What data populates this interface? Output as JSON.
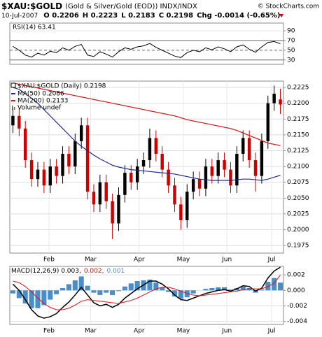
{
  "header": {
    "symbol": "$XAU:$GOLD",
    "description": "(Gold & Silver/Gold (EOD)) INDX/INDX",
    "copyright": "© StockCharts.com",
    "date": "10-Jul-2007",
    "open": "O 0.2206",
    "high": "H 0.2223",
    "low": "L 0.2183",
    "close": "C 0.2198",
    "change": "Chg -0.0014 (-0.65%)"
  },
  "chart_data": [
    {
      "type": "line",
      "title": "RSI(14) 63.41",
      "xlim": [
        -0.5,
        43.5
      ],
      "ylim": [
        21,
        106
      ],
      "yticks": [
        90,
        70,
        50,
        30
      ],
      "series": [
        {
          "name": "RSI(14)",
          "color": "#000000",
          "values": [
            58,
            50,
            40,
            36,
            44,
            40,
            48,
            45,
            55,
            50,
            58,
            62,
            40,
            37,
            47,
            42,
            36,
            47,
            55,
            52,
            57,
            59,
            64,
            56,
            50,
            44,
            38,
            35,
            45,
            50,
            47,
            55,
            51,
            57,
            53,
            47,
            57,
            61,
            52,
            46,
            57,
            66,
            68,
            63.41
          ]
        }
      ]
    },
    {
      "type": "candlestick",
      "title": "$XAU:$GOLD (Daily) 0.2198",
      "volume_label": "Volume undef",
      "up_color": "#000000",
      "down_color": "#cc0000",
      "grid": true,
      "xlim": [
        -0.5,
        43.5
      ],
      "xticks": [
        {
          "value": 5.8,
          "label": "Feb"
        },
        {
          "value": 12.5,
          "label": "Mar"
        },
        {
          "value": 20.3,
          "label": "Apr"
        },
        {
          "value": 27.4,
          "label": "May"
        },
        {
          "value": 34.4,
          "label": "Jun"
        },
        {
          "value": 41.6,
          "label": "Jul"
        }
      ],
      "ylim": [
        0.1963,
        0.2235
      ],
      "yticks": [
        0.1975,
        {
          "value": 0.2,
          "label": "0.2000"
        },
        0.2025,
        {
          "value": 0.205,
          "label": "0.2050"
        },
        0.2075,
        {
          "value": 0.21,
          "label": "0.2100"
        },
        0.2125,
        {
          "value": 0.215,
          "label": "0.2150"
        },
        0.2175,
        {
          "value": 0.22,
          "label": "0.2200"
        },
        0.2225
      ],
      "open": [
        0.2165,
        0.218,
        0.216,
        0.211,
        0.208,
        0.2095,
        0.207,
        0.21,
        0.2085,
        0.212,
        0.21,
        0.214,
        0.2165,
        0.206,
        0.204,
        0.2075,
        0.2045,
        0.201,
        0.2055,
        0.209,
        0.2075,
        0.21,
        0.211,
        0.2145,
        0.212,
        0.2095,
        0.207,
        0.204,
        0.2015,
        0.206,
        0.208,
        0.2065,
        0.21,
        0.2085,
        0.211,
        0.2095,
        0.207,
        0.212,
        0.2145,
        0.211,
        0.2085,
        0.214,
        0.22,
        0.2206
      ],
      "high": [
        0.2192,
        0.2192,
        0.2172,
        0.2122,
        0.2107,
        0.2107,
        0.2112,
        0.2112,
        0.2132,
        0.2132,
        0.2152,
        0.2177,
        0.2177,
        0.2072,
        0.2087,
        0.2087,
        0.2057,
        0.2067,
        0.2102,
        0.2102,
        0.2112,
        0.2122,
        0.216,
        0.2157,
        0.2132,
        0.2107,
        0.2082,
        0.2052,
        0.2072,
        0.2092,
        0.2092,
        0.2112,
        0.2112,
        0.2122,
        0.2122,
        0.2107,
        0.2132,
        0.2157,
        0.2157,
        0.2122,
        0.2152,
        0.2212,
        0.2228,
        0.2223
      ],
      "low": [
        0.2153,
        0.2148,
        0.2098,
        0.2068,
        0.2068,
        0.2058,
        0.2058,
        0.2073,
        0.2073,
        0.2088,
        0.2088,
        0.2128,
        0.2048,
        0.2028,
        0.2028,
        0.2033,
        0.1985,
        0.1998,
        0.2043,
        0.2063,
        0.2063,
        0.2088,
        0.2098,
        0.2108,
        0.2083,
        0.2058,
        0.2028,
        0.2,
        0.2003,
        0.2048,
        0.2053,
        0.2053,
        0.2073,
        0.2073,
        0.2083,
        0.2058,
        0.2058,
        0.2108,
        0.2098,
        0.206,
        0.2073,
        0.2128,
        0.2188,
        0.2183
      ],
      "close": [
        0.218,
        0.216,
        0.211,
        0.208,
        0.2095,
        0.207,
        0.21,
        0.2085,
        0.212,
        0.21,
        0.214,
        0.2165,
        0.206,
        0.204,
        0.2075,
        0.2045,
        0.201,
        0.2055,
        0.209,
        0.2075,
        0.21,
        0.211,
        0.2145,
        0.212,
        0.2095,
        0.207,
        0.204,
        0.2015,
        0.206,
        0.208,
        0.2065,
        0.21,
        0.2085,
        0.211,
        0.2095,
        0.207,
        0.212,
        0.2145,
        0.211,
        0.2085,
        0.214,
        0.22,
        0.2215,
        0.2198
      ],
      "series": [
        {
          "name": "MA(50) 0.2086",
          "color": "#1f2d8c",
          "values": [
            0.2225,
            0.2222,
            0.2215,
            0.2208,
            0.22,
            0.219,
            0.218,
            0.217,
            0.216,
            0.215,
            0.214,
            0.2132,
            0.2125,
            0.2118,
            0.2112,
            0.2107,
            0.2102,
            0.2099,
            0.2097,
            0.2095,
            0.2094,
            0.2093,
            0.2092,
            0.2091,
            0.209,
            0.2089,
            0.2088,
            0.2086,
            0.2084,
            0.2082,
            0.208,
            0.2079,
            0.2078,
            0.2078,
            0.2078,
            0.2078,
            0.2079,
            0.208,
            0.208,
            0.2079,
            0.2078,
            0.208,
            0.2083,
            0.2086
          ]
        },
        {
          "name": "MA(200) 0.2133",
          "color": "#dd1111",
          "values": [
            0.2232,
            0.223,
            0.2228,
            0.2226,
            0.2224,
            0.2222,
            0.222,
            0.2218,
            0.2216,
            0.2214,
            0.2212,
            0.221,
            0.2208,
            0.2206,
            0.2204,
            0.2202,
            0.22,
            0.2198,
            0.2196,
            0.2194,
            0.2192,
            0.219,
            0.2188,
            0.2186,
            0.2184,
            0.2182,
            0.218,
            0.2177,
            0.2174,
            0.2172,
            0.217,
            0.2168,
            0.2166,
            0.2164,
            0.2162,
            0.216,
            0.2157,
            0.2153,
            0.2149,
            0.2145,
            0.2141,
            0.2137,
            0.2135,
            0.2133
          ]
        }
      ]
    },
    {
      "type": "macd",
      "grid": true,
      "xlim": [
        -0.5,
        43.5
      ],
      "xticks": [
        {
          "value": 5.8,
          "label": "Feb"
        },
        {
          "value": 12.5,
          "label": "Mar"
        },
        {
          "value": 20.3,
          "label": "Apr"
        },
        {
          "value": 27.4,
          "label": "May"
        },
        {
          "value": 34.4,
          "label": "Jun"
        },
        {
          "value": 41.6,
          "label": "Jul"
        }
      ],
      "ylim": [
        -0.0044,
        0.0031
      ],
      "yticks": [
        0.002,
        {
          "value": 0,
          "label": "0.000"
        },
        -0.002,
        -0.004
      ],
      "series": [
        {
          "name": "MACD(12,26,9) 0.003,",
          "color": "#000000",
          "kind": "line",
          "values": [
            0.0008,
            0.0,
            -0.0012,
            -0.0025,
            -0.0033,
            -0.0036,
            -0.0034,
            -0.003,
            -0.0022,
            -0.0015,
            -0.0006,
            0.0004,
            -0.0006,
            -0.0016,
            -0.002,
            -0.0018,
            -0.0022,
            -0.0018,
            -0.001,
            -0.0004,
            0.0002,
            0.0007,
            0.0012,
            0.0012,
            0.0008,
            0.0002,
            -0.0006,
            -0.0012,
            -0.0013,
            -0.001,
            -0.0007,
            -0.0004,
            -0.0002,
            0.0,
            0.0001,
            -0.0001,
            0.0002,
            0.0006,
            0.0005,
            -0.0001,
            0.0003,
            0.0016,
            0.0025,
            0.003
          ]
        },
        {
          "name": "0.002,",
          "color": "#dd1111",
          "kind": "line",
          "values": [
            0.0012,
            0.001,
            0.0005,
            -0.0002,
            -0.001,
            -0.0017,
            -0.0022,
            -0.0025,
            -0.0025,
            -0.0023,
            -0.0019,
            -0.0014,
            -0.0012,
            -0.0013,
            -0.0014,
            -0.0015,
            -0.0016,
            -0.0017,
            -0.0015,
            -0.0013,
            -0.001,
            -0.0006,
            -0.0002,
            0.0002,
            0.0004,
            0.0004,
            0.0002,
            -0.0001,
            -0.0004,
            -0.0006,
            -0.0007,
            -0.0006,
            -0.0005,
            -0.0004,
            -0.0003,
            -0.0002,
            -0.0001,
            0.0001,
            0.0002,
            0.0002,
            0.0002,
            0.0005,
            0.0009,
            0.002
          ]
        },
        {
          "name": "0.001",
          "color": "#4a8ec9",
          "kind": "bar",
          "values": [
            -0.0004,
            -0.001,
            -0.0017,
            -0.0023,
            -0.0023,
            -0.0019,
            -0.0012,
            -0.0005,
            0.0003,
            0.0008,
            0.0013,
            0.0018,
            0.0006,
            -0.0003,
            -0.0006,
            -0.0003,
            -0.0006,
            -0.0001,
            0.0005,
            0.0009,
            0.0012,
            0.0013,
            0.0014,
            0.001,
            0.0004,
            -0.0002,
            -0.0008,
            -0.0011,
            -0.0009,
            -0.0004,
            0.0,
            0.0002,
            0.0003,
            0.0004,
            0.0004,
            0.0001,
            0.0003,
            0.0005,
            0.0003,
            -0.0003,
            0.0001,
            0.0011,
            0.0016,
            0.001
          ]
        }
      ]
    }
  ]
}
